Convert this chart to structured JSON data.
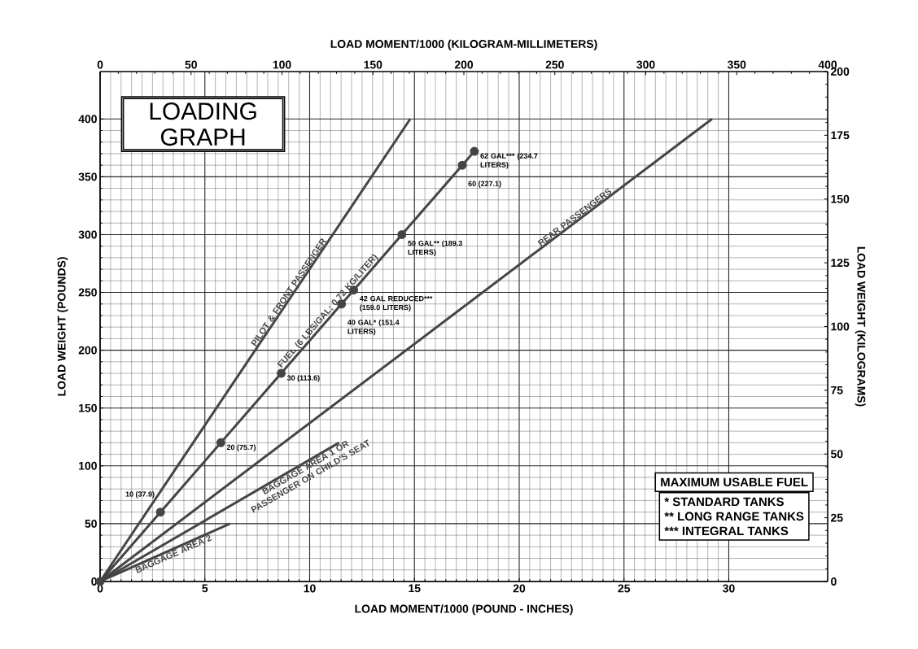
{
  "chart_data": {
    "type": "line",
    "title": "LOADING GRAPH",
    "xlabel": "LOAD MOMENT/1000 (POUND - INCHES)",
    "ylabel": "LOAD WEIGHT (POUNDS)",
    "x2label": "LOAD MOMENT/1000 (KILOGRAM-MILLIMETERS)",
    "y2label": "LOAD WEIGHT (KILOGRAMS)",
    "xlim": [
      0,
      34.72
    ],
    "ylim": [
      0,
      441
    ],
    "x2lim": [
      0,
      400
    ],
    "y2lim": [
      0,
      200
    ],
    "xticks": [
      0,
      5,
      10,
      15,
      20,
      25,
      30
    ],
    "yticks": [
      0,
      50,
      100,
      150,
      200,
      250,
      300,
      350,
      400
    ],
    "x2ticks": [
      0,
      50,
      100,
      150,
      200,
      250,
      300,
      350,
      400
    ],
    "y2ticks": [
      0,
      25,
      50,
      75,
      100,
      125,
      150,
      175,
      200
    ],
    "grid": true,
    "line_style": "solid",
    "series": [
      {
        "name": "PILOT & FRONT PASSENGER",
        "color": "#454545",
        "x": [
          0,
          14.8
        ],
        "values": [
          0,
          400
        ]
      },
      {
        "name": "FUEL (6 LBS/GAL; 0.72 KG/LITER)",
        "color": "#454545",
        "marker": "circle",
        "x": [
          0,
          2.88,
          5.76,
          8.64,
          11.52,
          12.1,
          14.4,
          17.28,
          17.86
        ],
        "values": [
          0,
          60,
          120,
          180,
          240,
          252,
          300,
          360,
          372
        ]
      },
      {
        "name": "REAR PASSENGERS",
        "color": "#454545",
        "x": [
          0,
          29.2
        ],
        "values": [
          0,
          400
        ]
      },
      {
        "name": "BAGGAGE AREA 1 OR PASSENGER ON CHILD'S SEAT",
        "color": "#454545",
        "x": [
          0,
          11.4
        ],
        "values": [
          0,
          120
        ]
      },
      {
        "name": "BAGGAGE AREA 2",
        "color": "#454545",
        "x": [
          0,
          6.2
        ],
        "values": [
          0,
          50
        ]
      }
    ],
    "annotations": [
      {
        "text": "10 (37.9)",
        "x": 2.88,
        "y": 60
      },
      {
        "text": "20 (75.7)",
        "x": 5.76,
        "y": 120
      },
      {
        "text": "30 (113.6)",
        "x": 8.64,
        "y": 180
      },
      {
        "text": "40 GAL* (151.4 LITERS)",
        "x": 11.52,
        "y": 240
      },
      {
        "text": "42 GAL REDUCED*** (159.0 LITERS)",
        "x": 12.1,
        "y": 252
      },
      {
        "text": "50 GAL** (189.3 LITERS)",
        "x": 14.4,
        "y": 300
      },
      {
        "text": "60 (227.1)",
        "x": 17.28,
        "y": 360
      },
      {
        "text": "62 GAL*** (234.7 LITERS)",
        "x": 17.86,
        "y": 372
      },
      "MAXIMUM USABLE FUEL",
      "* STANDARD TANKS",
      "** LONG RANGE TANKS",
      "*** INTEGRAL TANKS"
    ]
  }
}
